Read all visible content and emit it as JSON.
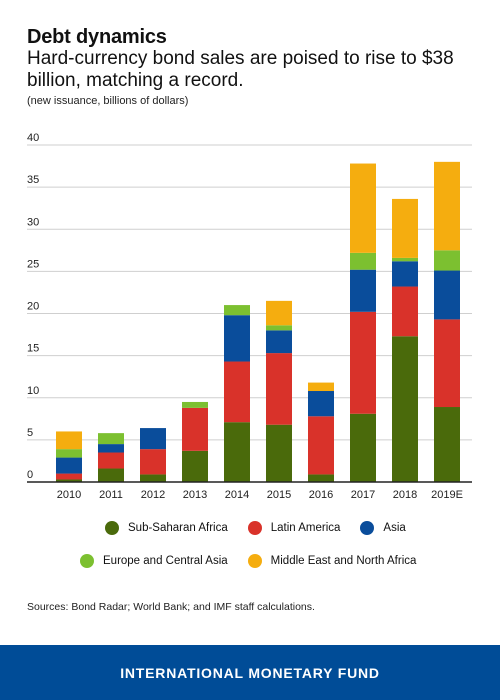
{
  "header": {
    "title": "Debt dynamics",
    "subtitle": "Hard-currency bond sales are poised to rise to $38 billion, matching a record.",
    "units": "(new issuance, billions of dollars)"
  },
  "chart_data": {
    "type": "bar",
    "stacked": true,
    "categories": [
      "2010",
      "2011",
      "2012",
      "2013",
      "2014",
      "2015",
      "2016",
      "2017",
      "2018",
      "2019E"
    ],
    "ylim": [
      0,
      40
    ],
    "yticks": [
      0,
      5,
      10,
      15,
      20,
      25,
      30,
      35,
      40
    ],
    "grid": true,
    "legend_position": "bottom",
    "series": [
      {
        "name": "Sub-Saharan Africa",
        "color": "#4a6a0b",
        "values": [
          0.3,
          1.6,
          0.9,
          3.7,
          7.1,
          6.8,
          0.9,
          8.1,
          17.3,
          8.9
        ]
      },
      {
        "name": "Latin America",
        "color": "#d9322a",
        "values": [
          0.7,
          1.9,
          3.0,
          5.1,
          7.2,
          8.5,
          6.9,
          12.1,
          5.9,
          10.4
        ]
      },
      {
        "name": "Asia",
        "color": "#0a4d9b",
        "values": [
          1.9,
          1.0,
          2.5,
          0.0,
          5.5,
          2.7,
          3.0,
          5.0,
          3.0,
          5.8
        ]
      },
      {
        "name": "Europe and Central Asia",
        "color": "#7cc030",
        "values": [
          1.0,
          1.3,
          0.0,
          0.7,
          1.2,
          0.6,
          0.0,
          2.0,
          0.4,
          2.4
        ]
      },
      {
        "name": "Middle East and North Africa",
        "color": "#f5ad0f",
        "values": [
          2.1,
          0.0,
          0.0,
          0.0,
          0.0,
          2.9,
          1.0,
          10.6,
          7.0,
          10.5
        ]
      }
    ]
  },
  "legend": {
    "row1": [
      "Sub-Saharan Africa",
      "Latin America",
      "Asia"
    ],
    "row2": [
      "Europe and Central Asia",
      "Middle East and North Africa"
    ]
  },
  "colors": {
    "sub_saharan_africa": "#4a6a0b",
    "latin_america": "#d9322a",
    "asia": "#0a4d9b",
    "europe_central_asia": "#7cc030",
    "mena": "#f5ad0f",
    "footer_bg": "#004c97"
  },
  "source": "Sources: Bond Radar; World Bank; and IMF staff calculations.",
  "footer": {
    "text": "INTERNATIONAL MONETARY FUND"
  }
}
